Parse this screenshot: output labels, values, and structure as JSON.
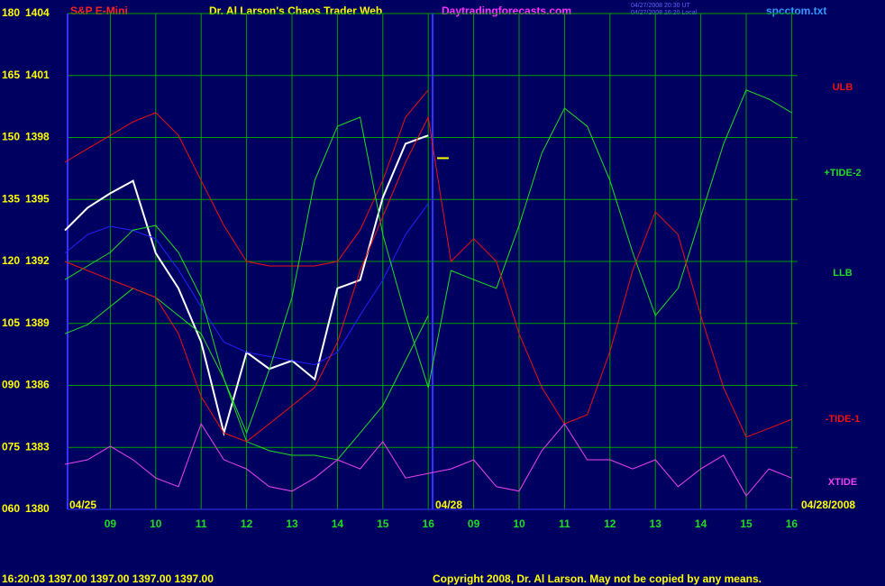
{
  "chart_data": {
    "type": "line",
    "title": "S&P E-Mini",
    "subtitle": "Dr. Al Larson's Chaos Trader Web",
    "site": "Daytradingforecasts.com",
    "timestamps": [
      "04/27/2008 20:30 UT",
      "04/27/2008 16:20 Local"
    ],
    "file": "spcctom.txt",
    "date_labels": [
      "04/25",
      "04/28",
      "04/28/2008"
    ],
    "status": "16:20:03  1397.00 1397.00 1397.00 1397.00",
    "copyright": "Copyright 2008, Dr. Al Larson. May not be copied by any means.",
    "last_price": 1397,
    "categories": [
      null,
      null,
      "09",
      null,
      "10",
      null,
      "11",
      null,
      "12",
      null,
      "13",
      null,
      "14",
      null,
      "15",
      null,
      "16",
      null,
      "09",
      null,
      "10",
      null,
      "11",
      null,
      "12",
      null,
      "13",
      null,
      "14",
      null,
      "15",
      null,
      "16"
    ],
    "ylim": [
      1380,
      1404
    ],
    "yticks": [
      1380,
      1383,
      1386,
      1389,
      1392,
      1395,
      1398,
      1401,
      1404
    ],
    "y2lim": [
      60,
      180
    ],
    "y2ticks": [
      {
        "value": 60,
        "label": "060"
      },
      {
        "value": 75,
        "label": "075"
      },
      {
        "value": 90,
        "label": "090"
      },
      105,
      120,
      135,
      150,
      165,
      180
    ],
    "grid": true,
    "series": [
      {
        "color": "#ffffff",
        "values": [
          1393.5,
          1394.6,
          1395.3,
          1395.9,
          1392.4,
          1390.7,
          1388.1,
          1383.7,
          1387.6,
          1386.8,
          1387.2,
          1386.3,
          1390.7,
          1391.1,
          1395.1,
          1397.7,
          1398.1,
          null,
          null,
          null,
          null,
          null,
          null,
          null,
          null,
          null,
          null,
          null,
          null,
          null,
          null,
          null,
          null
        ]
      },
      {
        "color": "#2222ff",
        "values": [
          1392.4,
          1393.3,
          1393.7,
          1393.5,
          1393.1,
          1391.6,
          1389.8,
          1388.1,
          1387.6,
          1387.4,
          1387.2,
          1387.0,
          1387.6,
          1389.4,
          1391.1,
          1393.3,
          1394.8,
          null,
          null,
          null,
          null,
          null,
          null,
          null,
          null,
          null,
          null,
          null,
          null,
          null,
          null,
          null,
          null
        ]
      },
      {
        "name": "ULB",
        "color": "#ee1111",
        "axis": "y2",
        "values": [
          144.0,
          147.3,
          150.5,
          153.8,
          156.0,
          150.5,
          139.6,
          128.7,
          120.0,
          118.9,
          118.9,
          118.9,
          120.0,
          127.6,
          139.6,
          154.9,
          161.5,
          null,
          null,
          null,
          null,
          null,
          null,
          null,
          null,
          null,
          null,
          null,
          null,
          null,
          null,
          null,
          null
        ]
      },
      {
        "name": "+TIDE-2",
        "color": "#22dd22",
        "axis": "y2",
        "values": [
          115.6,
          118.9,
          122.2,
          127.6,
          128.7,
          122.2,
          111.3,
          91.6,
          78.5,
          93.8,
          111.3,
          139.6,
          152.7,
          154.9,
          126.5,
          106.9,
          89.5,
          117.8,
          115.6,
          113.5,
          128.7,
          146.2,
          157.1,
          152.7,
          139.6,
          122.2,
          106.9,
          113.5,
          130.9,
          148.4,
          161.5,
          159.3,
          156.0
        ]
      },
      {
        "name": "LLB",
        "color": "#22dd22",
        "axis": "y2",
        "values": [
          102.5,
          104.7,
          109.1,
          113.5,
          111.3,
          106.9,
          102.5,
          91.6,
          76.4,
          74.2,
          73.1,
          73.1,
          72.0,
          78.5,
          85.1,
          96.0,
          106.9,
          null,
          null,
          null,
          null,
          null,
          null,
          null,
          null,
          null,
          null,
          null,
          null,
          null,
          null,
          null,
          null
        ]
      },
      {
        "name": "-TIDE-1",
        "color": "#ee1111",
        "axis": "y2",
        "values": [
          120.0,
          117.8,
          115.6,
          113.5,
          111.3,
          102.5,
          87.3,
          78.5,
          76.4,
          80.7,
          85.1,
          89.5,
          100.4,
          117.8,
          130.9,
          144.0,
          154.9,
          120.0,
          125.5,
          120.0,
          102.5,
          89.5,
          80.7,
          82.9,
          98.2,
          117.8,
          132.0,
          126.5,
          106.9,
          89.5,
          77.5,
          79.6,
          81.8
        ]
      },
      {
        "name": "XTIDE",
        "color": "#ee44ee",
        "axis": "y2",
        "values": [
          70.9,
          72.0,
          75.3,
          72.0,
          67.6,
          65.5,
          80.7,
          72.0,
          69.8,
          65.5,
          64.4,
          67.6,
          72.0,
          69.8,
          76.4,
          67.6,
          68.7,
          69.8,
          72.0,
          65.5,
          64.4,
          74.2,
          80.7,
          72.0,
          72.0,
          69.8,
          72.0,
          65.5,
          69.8,
          73.1,
          63.3,
          69.8,
          67.6
        ]
      }
    ]
  }
}
